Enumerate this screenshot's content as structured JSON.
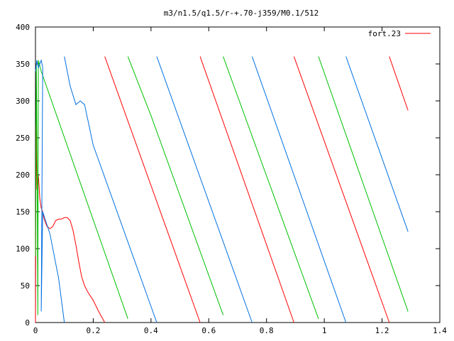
{
  "chart_data": {
    "type": "line",
    "title": "m3/n1.5/q1.5/r-+.70-j359/M0.1/512",
    "xlim": [
      0,
      1.4
    ],
    "ylim": [
      0,
      400
    ],
    "x_ticks": [
      0,
      0.2,
      0.4,
      0.6,
      0.8,
      1,
      1.2,
      1.4
    ],
    "x_tick_labels": [
      "0",
      "0.2",
      "0.4",
      "0.6",
      "0.8",
      "1",
      "1.2",
      "1.4"
    ],
    "y_ticks": [
      0,
      50,
      100,
      150,
      200,
      250,
      300,
      350,
      400
    ],
    "y_tick_labels": [
      "0",
      "50",
      "100",
      "150",
      "200",
      "250",
      "300",
      "350",
      "400"
    ],
    "legend": {
      "label": "fort.23",
      "position": "top-right"
    },
    "grid": false,
    "series": [
      {
        "name": "fort.23",
        "color": "#ff0000",
        "segments": [
          [
            [
              0.0,
              0
            ],
            [
              0.002,
              270
            ],
            [
              0.005,
              180
            ],
            [
              0.01,
              200
            ],
            [
              0.015,
              168
            ],
            [
              0.02,
              155
            ],
            [
              0.025,
              150
            ],
            [
              0.03,
              140
            ],
            [
              0.04,
              130
            ],
            [
              0.05,
              127
            ],
            [
              0.06,
              130
            ],
            [
              0.07,
              138
            ],
            [
              0.08,
              140
            ],
            [
              0.09,
              140
            ],
            [
              0.1,
              142
            ],
            [
              0.11,
              142
            ],
            [
              0.12,
              138
            ],
            [
              0.13,
              125
            ],
            [
              0.14,
              105
            ],
            [
              0.15,
              82
            ],
            [
              0.16,
              62
            ],
            [
              0.17,
              50
            ],
            [
              0.18,
              42
            ],
            [
              0.2,
              30
            ],
            [
              0.22,
              14
            ],
            [
              0.24,
              0
            ]
          ],
          [
            [
              0.24,
              360
            ],
            [
              0.57,
              0
            ]
          ],
          [
            [
              0.57,
              360
            ],
            [
              0.895,
              0
            ]
          ],
          [
            [
              0.895,
              360
            ],
            [
              1.225,
              0
            ]
          ],
          [
            [
              1.225,
              360
            ],
            [
              1.29,
              287
            ]
          ]
        ]
      },
      {
        "name": "",
        "color": "#00c000",
        "segments": [
          [
            [
              0.0,
              90
            ],
            [
              0.003,
              350
            ],
            [
              0.006,
              200
            ],
            [
              0.008,
              10
            ],
            [
              0.01,
              355
            ],
            [
              0.02,
              340
            ],
            [
              0.32,
              5
            ]
          ],
          [
            [
              0.32,
              360
            ],
            [
              0.35,
              330
            ],
            [
              0.4,
              280
            ],
            [
              0.65,
              10
            ]
          ],
          [
            [
              0.65,
              360
            ],
            [
              0.98,
              5
            ]
          ],
          [
            [
              0.98,
              360
            ],
            [
              1.29,
              15
            ]
          ]
        ]
      },
      {
        "name": "",
        "color": "#0070e0",
        "segments": [
          [
            [
              0.0,
              340
            ],
            [
              0.005,
              355
            ],
            [
              0.01,
              345
            ],
            [
              0.02,
              355
            ],
            [
              0.025,
              345
            ],
            [
              0.02,
              15
            ],
            [
              0.025,
              150
            ],
            [
              0.05,
              120
            ],
            [
              0.08,
              60
            ],
            [
              0.1,
              0
            ]
          ],
          [
            [
              0.1,
              360
            ],
            [
              0.12,
              320
            ],
            [
              0.14,
              295
            ],
            [
              0.155,
              300
            ],
            [
              0.17,
              295
            ],
            [
              0.2,
              240
            ],
            [
              0.42,
              0
            ]
          ],
          [
            [
              0.42,
              360
            ],
            [
              0.75,
              0
            ]
          ],
          [
            [
              0.75,
              360
            ],
            [
              1.075,
              0
            ]
          ],
          [
            [
              1.075,
              360
            ],
            [
              1.29,
              123
            ]
          ]
        ]
      }
    ],
    "annotations": []
  }
}
